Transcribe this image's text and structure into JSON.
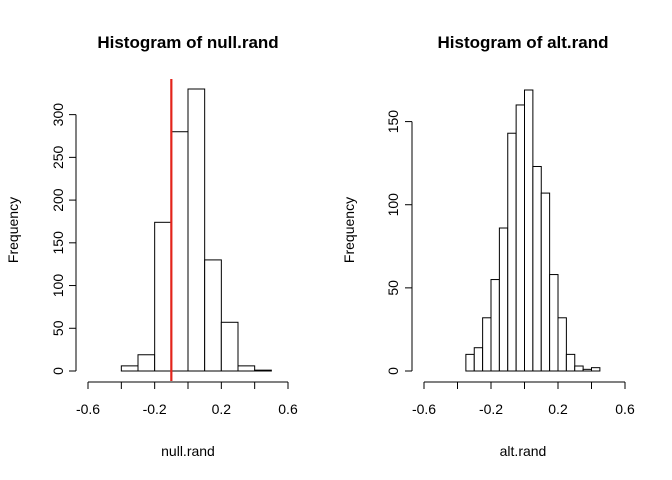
{
  "chart_data": [
    {
      "type": "bar",
      "title": "Histogram of null.rand",
      "xlabel": "null.rand",
      "ylabel": "Frequency",
      "bin_edges": [
        -0.4,
        -0.3,
        -0.2,
        -0.1,
        0.0,
        0.1,
        0.2,
        0.3,
        0.4,
        0.5
      ],
      "values": [
        6,
        19,
        174,
        280,
        330,
        130,
        57,
        6,
        1
      ],
      "xlim": [
        -0.6,
        0.6
      ],
      "ylim": [
        0,
        330
      ],
      "x_ticks": [
        -0.6,
        -0.2,
        0.2,
        0.6
      ],
      "x_tick_labels": [
        "-0.6",
        "-0.2",
        "0.2",
        "0.6"
      ],
      "y_ticks": [
        0,
        50,
        100,
        150,
        200,
        250,
        300
      ],
      "y_tick_labels": [
        "0",
        "50",
        "100",
        "150",
        "200",
        "250",
        "300"
      ],
      "reference_line": {
        "x": -0.1,
        "color": "#e3241b"
      }
    },
    {
      "type": "bar",
      "title": "Histogram of alt.rand",
      "xlabel": "alt.rand",
      "ylabel": "Frequency",
      "bin_edges": [
        -0.35,
        -0.3,
        -0.25,
        -0.2,
        -0.15,
        -0.1,
        -0.05,
        0.0,
        0.05,
        0.1,
        0.15,
        0.2,
        0.25,
        0.3,
        0.35,
        0.4,
        0.45
      ],
      "values": [
        10,
        14,
        32,
        55,
        86,
        143,
        160,
        169,
        123,
        107,
        58,
        32,
        10,
        3,
        1,
        2
      ],
      "xlim": [
        -0.6,
        0.6
      ],
      "ylim": [
        0,
        169
      ],
      "x_ticks": [
        -0.6,
        -0.2,
        0.2,
        0.6
      ],
      "x_tick_labels": [
        "-0.6",
        "-0.2",
        "0.2",
        "0.6"
      ],
      "y_ticks": [
        0,
        50,
        100,
        150
      ],
      "y_tick_labels": [
        "0",
        "50",
        "100",
        "150"
      ]
    }
  ]
}
